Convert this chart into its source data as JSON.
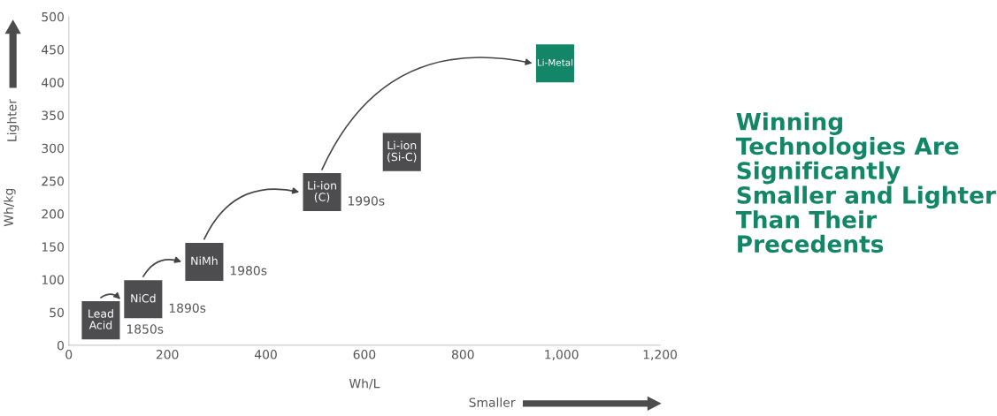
{
  "chart_data": {
    "type": "scatter",
    "title": "Winning Technologies Are Significantly Smaller and Lighter Than Their Precedents",
    "xlabel": "Wh/L",
    "ylabel": "Wh/kg",
    "annotations": [
      "Lighter",
      "Smaller",
      {
        "text": "Lead\nAcid",
        "x": 65,
        "y": 38
      },
      {
        "text": "NiCd",
        "x": 151,
        "y": 70
      },
      {
        "text": "NiMh",
        "x": 275,
        "y": 127
      },
      {
        "text": "Li-ion\n(C)",
        "x": 514,
        "y": 233
      },
      {
        "text": "Li-ion\n(Si-C)",
        "x": 676,
        "y": 294
      },
      {
        "text": "Li-Metal",
        "x": 987,
        "y": 429
      },
      {
        "text": "1850s",
        "x": 65,
        "y": 38
      },
      {
        "text": "1890s",
        "x": 151,
        "y": 70
      },
      {
        "text": "1980s",
        "x": 275,
        "y": 127
      },
      {
        "text": "1990s",
        "x": 514,
        "y": 233
      }
    ],
    "xlim": [
      0,
      1200
    ],
    "xticks": [
      0,
      200,
      400,
      600,
      800,
      {
        "value": 1000,
        "label": "1,000"
      },
      {
        "value": 1200,
        "label": "1,200"
      }
    ],
    "ylim": [
      0,
      500
    ],
    "yticks": [
      0,
      50,
      100,
      150,
      200,
      250,
      300,
      350,
      400,
      450,
      500
    ],
    "marker": "square",
    "series": [
      {
        "color": "#4d4d4f",
        "x": [
          65
        ],
        "values": [
          38
        ]
      },
      {
        "color": "#4d4d4f",
        "x": [
          151
        ],
        "values": [
          70
        ]
      },
      {
        "color": "#4d4d4f",
        "x": [
          275
        ],
        "values": [
          127
        ]
      },
      {
        "color": "#4d4d4f",
        "x": [
          514
        ],
        "values": [
          233
        ]
      },
      {
        "color": "#4d4d4f",
        "x": [
          676
        ],
        "values": [
          294
        ]
      },
      {
        "color": "#138667",
        "x": [
          987
        ],
        "values": [
          429
        ]
      }
    ]
  }
}
